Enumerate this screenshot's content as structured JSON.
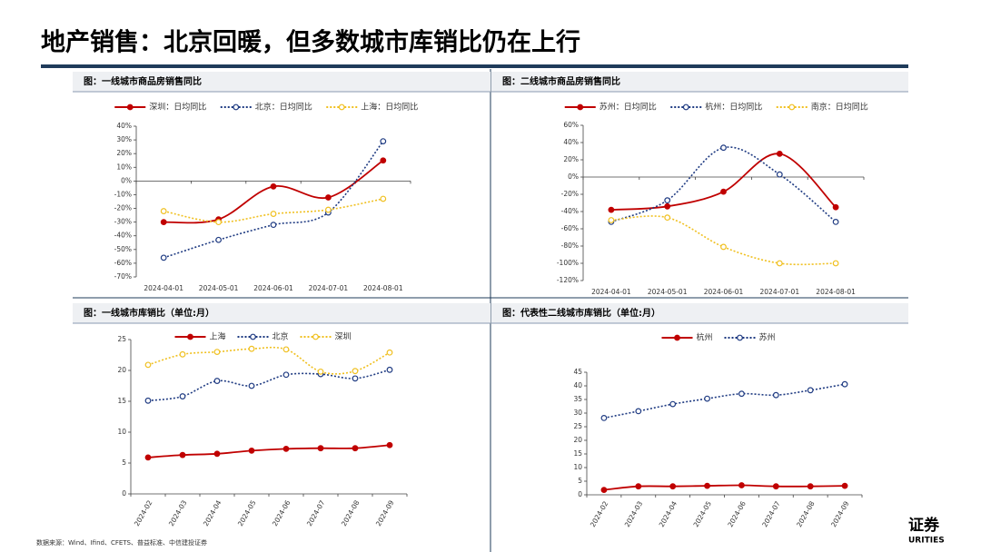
{
  "title": "地产销售：北京回暖，但多数城市库销比仍在上行",
  "source": "数据来源：Wind、Ifind、CFETS、普益标准、中信建投证券",
  "logo": {
    "text": "证券",
    "subtext": "URITIES"
  },
  "chart_data": [
    {
      "type": "line",
      "title": "图：一线城市商品房销售同比",
      "categories": [
        "2024-04-01",
        "2024-05-01",
        "2024-06-01",
        "2024-07-01",
        "2024-08-01"
      ],
      "series": [
        {
          "name": "深圳：日均同比",
          "color": "#c00000",
          "line_style": "solid",
          "values": [
            -30,
            -28,
            -4,
            -12,
            15
          ]
        },
        {
          "name": "北京：日均同比",
          "color": "#1f3b82",
          "line_style": "dotted",
          "values": [
            -56,
            -43,
            -32,
            -23,
            29
          ]
        },
        {
          "name": "上海：日均同比",
          "color": "#f0c020",
          "line_style": "dotted",
          "values": [
            -22,
            -30,
            -24,
            -21,
            -13
          ]
        }
      ],
      "ylim": [
        -70,
        40
      ],
      "yticks": [
        {
          "value": -70,
          "label": "-70%"
        },
        {
          "value": -60,
          "label": "-60%"
        },
        {
          "value": -50,
          "label": "-50%"
        },
        {
          "value": -40,
          "label": "-40%"
        },
        {
          "value": -30,
          "label": "-30%"
        },
        {
          "value": -20,
          "label": "-20%"
        },
        {
          "value": -10,
          "label": "-10%"
        },
        {
          "value": 0,
          "label": "0%"
        },
        {
          "value": 10,
          "label": "10%"
        },
        {
          "value": 20,
          "label": "20%"
        },
        {
          "value": 30,
          "label": "30%"
        },
        {
          "value": 40,
          "label": "40%"
        }
      ]
    },
    {
      "type": "line",
      "title": "图：二线城市商品房销售同比",
      "categories": [
        "2024-04-01",
        "2024-05-01",
        "2024-06-01",
        "2024-07-01",
        "2024-08-01"
      ],
      "series": [
        {
          "name": "苏州：日均同比",
          "color": "#c00000",
          "line_style": "solid",
          "values": [
            -38,
            -34,
            -17,
            27,
            -35
          ]
        },
        {
          "name": "杭州：日均同比",
          "color": "#1f3b82",
          "line_style": "dotted",
          "values": [
            -52,
            -27,
            34,
            3,
            -52
          ]
        },
        {
          "name": "南京：日均同比",
          "color": "#f0c020",
          "line_style": "dotted",
          "values": [
            -50,
            -47,
            -81,
            -100,
            -100
          ]
        }
      ],
      "ylim": [
        -120,
        60
      ],
      "yticks": [
        {
          "value": -120,
          "label": "-120%"
        },
        {
          "value": -100,
          "label": "-100%"
        },
        {
          "value": -80,
          "label": "-80%"
        },
        {
          "value": -60,
          "label": "-60%"
        },
        {
          "value": -40,
          "label": "-40%"
        },
        {
          "value": -20,
          "label": "-20%"
        },
        {
          "value": 0,
          "label": "0%"
        },
        {
          "value": 20,
          "label": "20%"
        },
        {
          "value": 40,
          "label": "40%"
        },
        {
          "value": 60,
          "label": "60%"
        }
      ]
    },
    {
      "type": "line",
      "title": "图：一线城市库销比（单位:月）",
      "categories": [
        "2024-02",
        "2024-03",
        "2024-04",
        "2024-05",
        "2024-06",
        "2024-07",
        "2024-08",
        "2024-09"
      ],
      "series": [
        {
          "name": "上海",
          "color": "#c00000",
          "line_style": "solid",
          "values": [
            5.9,
            6.3,
            6.5,
            7.0,
            7.3,
            7.4,
            7.4,
            7.9
          ]
        },
        {
          "name": "北京",
          "color": "#1f3b82",
          "line_style": "dotted",
          "values": [
            15.1,
            15.8,
            18.3,
            17.5,
            19.3,
            19.4,
            18.7,
            20.1
          ]
        },
        {
          "name": "深圳",
          "color": "#f0c020",
          "line_style": "dotted",
          "values": [
            20.9,
            22.6,
            23.0,
            23.5,
            23.4,
            19.8,
            19.9,
            22.9
          ]
        }
      ],
      "ylim": [
        0,
        25
      ],
      "yticks": [
        0,
        5,
        10,
        15,
        20,
        25
      ]
    },
    {
      "type": "line",
      "title": "图：代表性二线城市库销比（单位:月）",
      "categories": [
        "2024-02",
        "2024-03",
        "2024-04",
        "2024-05",
        "2024-06",
        "2024-07",
        "2024-08",
        "2024-09"
      ],
      "series": [
        {
          "name": "杭州",
          "color": "#c00000",
          "line_style": "solid",
          "values": [
            1.8,
            3.1,
            3.1,
            3.3,
            3.5,
            3.1,
            3.1,
            3.3
          ]
        },
        {
          "name": "苏州",
          "color": "#1f3b82",
          "line_style": "dotted",
          "values": [
            28.2,
            30.7,
            33.3,
            35.3,
            37.1,
            36.6,
            38.4,
            40.6
          ]
        }
      ],
      "ylim": [
        0,
        45
      ],
      "yticks": [
        0,
        5,
        10,
        15,
        20,
        25,
        30,
        35,
        40,
        45
      ]
    }
  ]
}
